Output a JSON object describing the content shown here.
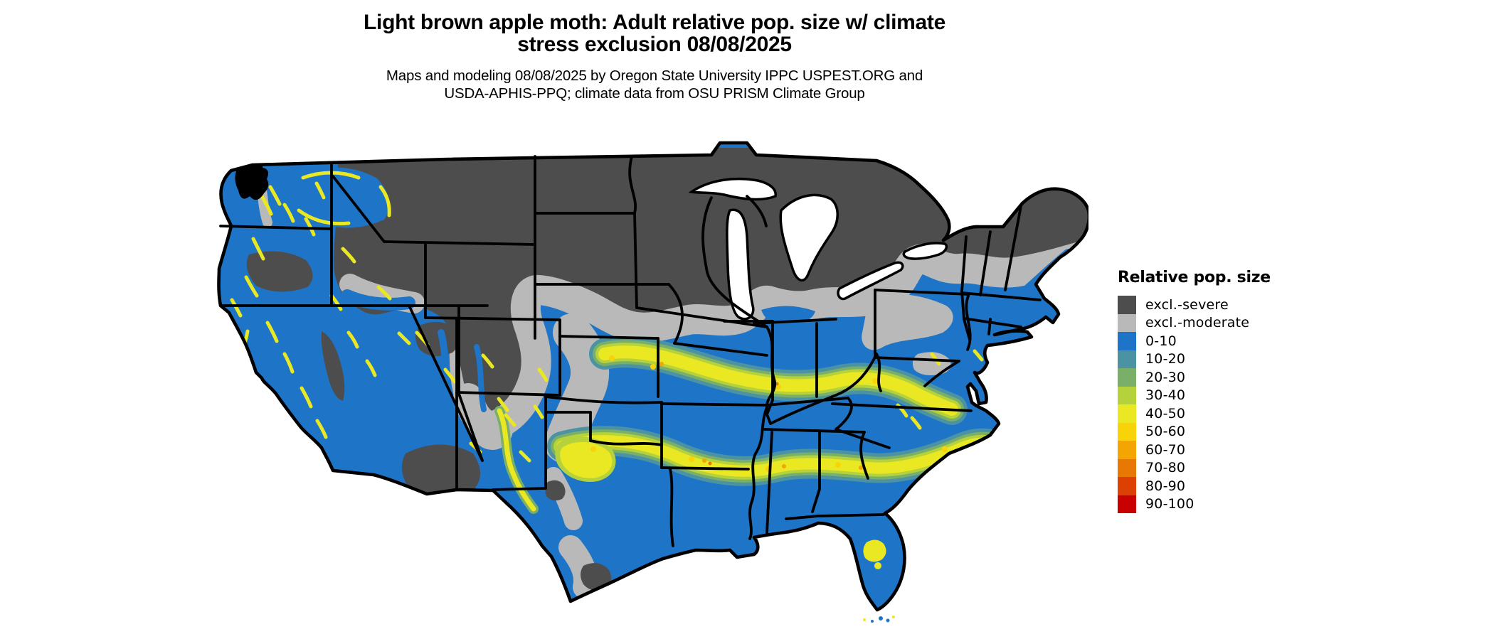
{
  "header": {
    "title_line1": "Light brown apple moth: Adult relative pop. size w/ climate",
    "title_line2": "stress exclusion 08/08/2025",
    "subtitle_line1": "Maps and modeling 08/08/2025 by Oregon State University IPPC USPEST.ORG and",
    "subtitle_line2": "USDA-APHIS-PPQ; climate data from OSU PRISM Climate Group"
  },
  "legend": {
    "title": "Relative pop. size",
    "entries": [
      {
        "key": "severe",
        "label": "excl.-severe",
        "color": "#4d4d4d"
      },
      {
        "key": "moderate",
        "label": "excl.-moderate",
        "color": "#b9b9b9"
      },
      {
        "key": "v0",
        "label": "0-10",
        "color": "#1e74c6"
      },
      {
        "key": "v10",
        "label": "10-20",
        "color": "#4b93a3"
      },
      {
        "key": "v20",
        "label": "20-30",
        "color": "#79af68"
      },
      {
        "key": "v30",
        "label": "30-40",
        "color": "#b5d23c"
      },
      {
        "key": "v40",
        "label": "40-50",
        "color": "#e9e823"
      },
      {
        "key": "v50",
        "label": "50-60",
        "color": "#f8d30a"
      },
      {
        "key": "v60",
        "label": "60-70",
        "color": "#f2a503"
      },
      {
        "key": "v70",
        "label": "70-80",
        "color": "#e87804"
      },
      {
        "key": "v80",
        "label": "80-90",
        "color": "#dc4002"
      },
      {
        "key": "v90",
        "label": "90-100",
        "color": "#c90000"
      }
    ]
  },
  "map": {
    "region": "Continental United States",
    "state_border_color": "#000000",
    "water_color": "#ffffff",
    "background_color": "#ffffff",
    "dominant_fill": "0-10 relative population (blue) across southern and coastal states",
    "excluded_fill": "climate-stress exclusion (dark gray north, light gray transition band)"
  }
}
